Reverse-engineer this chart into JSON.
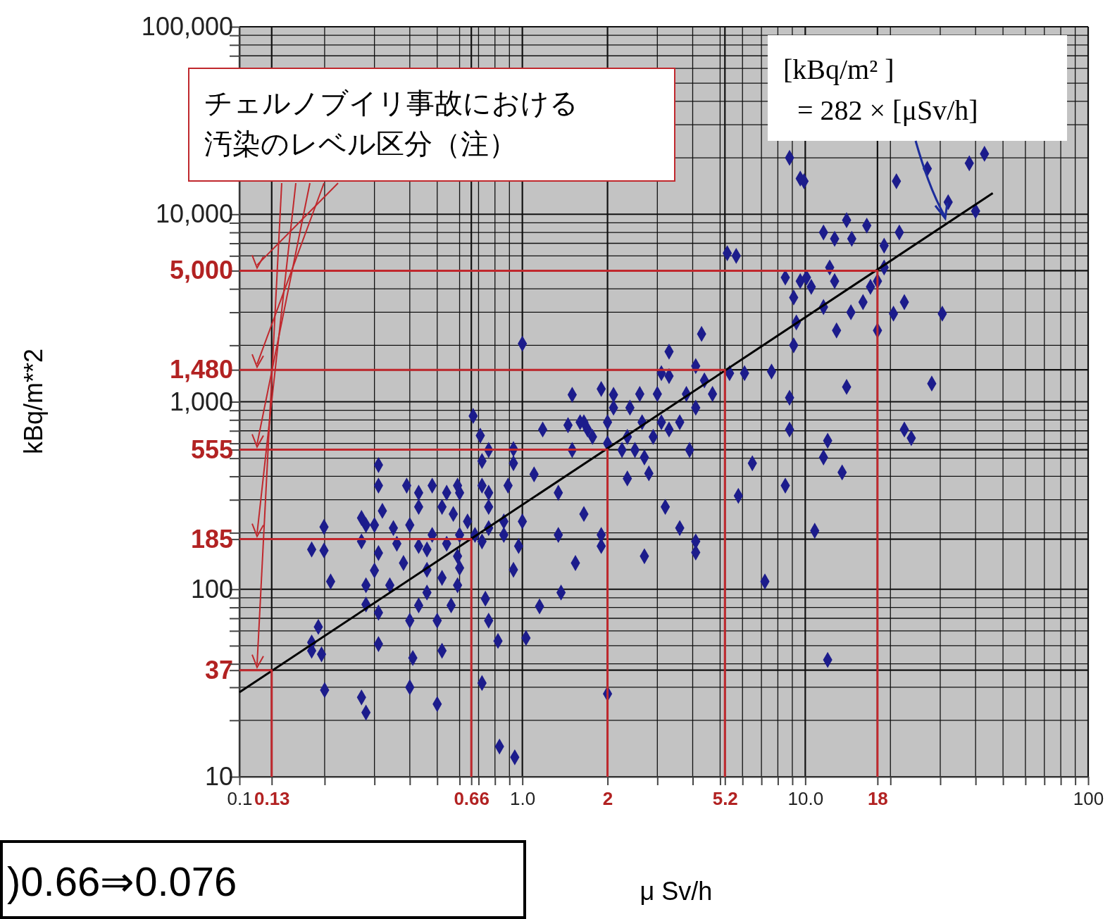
{
  "chart_data": {
    "type": "scatter",
    "log": "xy",
    "grid": true,
    "xlabel": "μ Sv/h",
    "ylabel": "kBq/m**2",
    "xlim": [
      0.1,
      100
    ],
    "ylim": [
      10,
      100000
    ],
    "xticks": [
      {
        "value": 0.1,
        "label": "0.1"
      },
      0.13,
      {
        "value": 0.2,
        "label": null
      },
      {
        "value": 0.3,
        "label": null
      },
      {
        "value": 0.4,
        "label": null
      },
      {
        "value": 0.5,
        "label": null
      },
      {
        "value": 0.6,
        "label": null
      },
      0.66,
      {
        "value": 0.7,
        "label": null
      },
      {
        "value": 0.8,
        "label": null
      },
      {
        "value": 0.9,
        "label": null
      },
      {
        "value": 1,
        "label": "1.0"
      },
      2,
      {
        "value": 3,
        "label": null
      },
      {
        "value": 4,
        "label": null
      },
      {
        "value": 5,
        "label": null
      },
      5.2,
      {
        "value": 6,
        "label": null
      },
      {
        "value": 7,
        "label": null
      },
      {
        "value": 8,
        "label": null
      },
      {
        "value": 9,
        "label": null
      },
      {
        "value": 10,
        "label": "10.0"
      },
      18,
      {
        "value": 20,
        "label": null
      },
      {
        "value": 30,
        "label": null
      },
      {
        "value": 40,
        "label": null
      },
      {
        "value": 50,
        "label": null
      },
      {
        "value": 60,
        "label": null
      },
      {
        "value": 70,
        "label": null
      },
      {
        "value": 80,
        "label": null
      },
      {
        "value": 90,
        "label": null
      },
      100
    ],
    "yticks": [
      10,
      {
        "value": 20,
        "label": null
      },
      {
        "value": 30,
        "label": null
      },
      37,
      {
        "value": 40,
        "label": null
      },
      {
        "value": 50,
        "label": null
      },
      {
        "value": 60,
        "label": null
      },
      {
        "value": 70,
        "label": null
      },
      {
        "value": 80,
        "label": null
      },
      {
        "value": 90,
        "label": null
      },
      100,
      185,
      {
        "value": 200,
        "label": null
      },
      {
        "value": 300,
        "label": null
      },
      {
        "value": 400,
        "label": null
      },
      {
        "value": 500,
        "label": null
      },
      555,
      {
        "value": 600,
        "label": null
      },
      {
        "value": 700,
        "label": null
      },
      {
        "value": 800,
        "label": null
      },
      {
        "value": 900,
        "label": null
      },
      {
        "value": 1000,
        "label": "1,000"
      },
      {
        "value": 1480,
        "label": "1,480"
      },
      {
        "value": 2000,
        "label": null
      },
      {
        "value": 3000,
        "label": null
      },
      {
        "value": 4000,
        "label": null
      },
      {
        "value": 5000,
        "label": "5,000"
      },
      {
        "value": 6000,
        "label": null
      },
      {
        "value": 7000,
        "label": null
      },
      {
        "value": 8000,
        "label": null
      },
      {
        "value": 9000,
        "label": null
      },
      {
        "value": 10000,
        "label": "10,000"
      },
      {
        "value": 20000,
        "label": null
      },
      {
        "value": 30000,
        "label": null
      },
      {
        "value": 40000,
        "label": null
      },
      {
        "value": 50000,
        "label": null
      },
      {
        "value": 60000,
        "label": null
      },
      {
        "value": 70000,
        "label": null
      },
      {
        "value": 80000,
        "label": null
      },
      {
        "value": 90000,
        "label": null
      },
      {
        "value": 100000,
        "label": "100,000"
      }
    ],
    "series": [
      {
        "marker": "diamond",
        "color": "#1c1c8c",
        "x": [
          0.199,
          0.199,
          0.18,
          0.18,
          0.18,
          0.195,
          0.19,
          0.2,
          0.21,
          0.27,
          0.28,
          0.27,
          0.31,
          0.31,
          0.3,
          0.31,
          0.3,
          0.28,
          0.28,
          0.27,
          0.28,
          0.31,
          0.31,
          0.32,
          0.35,
          0.36,
          0.39,
          0.4,
          0.43,
          0.43,
          0.43,
          0.41,
          0.4,
          0.5,
          0.46,
          0.5,
          0.52,
          0.48,
          0.54,
          0.59,
          0.57,
          0.59,
          0.6,
          0.56,
          0.59,
          0.67,
          0.71,
          0.72,
          0.76,
          0.76,
          0.72,
          0.74,
          0.76,
          0.72,
          0.83,
          0.94,
          0.82,
          0.97,
          1.0,
          0.89,
          0.93,
          1.0,
          1.03,
          0.93,
          1.15,
          1.18,
          1.34,
          1.34,
          1.37,
          1.5,
          1.54,
          1.65,
          1.7,
          1.9,
          1.9,
          2.0,
          2.0,
          2.1,
          2.25,
          2.35,
          2.4,
          2.6,
          2.7,
          2.8,
          3.1,
          3.2,
          3.1,
          3.3,
          3.6,
          3.9,
          4.1,
          4.1,
          4.3,
          4.1,
          4.4,
          4.7,
          5.3,
          5.7,
          5.4,
          5.8,
          6.1,
          6.5,
          7.2,
          7.6,
          8.5,
          8.8,
          8.8,
          9.1,
          8.8,
          9.6,
          9.9,
          10.8,
          11.6,
          12,
          12,
          13.5,
          11.6,
          12.7,
          14,
          14.6,
          14,
          14.5,
          16.5,
          17,
          18,
          20.5,
          21,
          22.4,
          22.4,
          23.7,
          19,
          21.5,
          27,
          28,
          30.5,
          32,
          38,
          40,
          43,
          8.5,
          9.6,
          10.1,
          10.5,
          11.6,
          9.1,
          12.2,
          12.9,
          12.7,
          9.3,
          18,
          19,
          16,
          1.6,
          1.77,
          2.0,
          2.35,
          2.5,
          2.7,
          2.9,
          3.3,
          3.6,
          3.8,
          2.65,
          3.0,
          3.3,
          4.1,
          1.9,
          2.1,
          1.65,
          1.5,
          1.45,
          0.43,
          0.48,
          0.52,
          0.6,
          0.64,
          0.68,
          0.76,
          0.86,
          0.86,
          0.72,
          0.76,
          0.93,
          1.1,
          0.46,
          0.54,
          0.6,
          0.52,
          0.46,
          0.38,
          0.34,
          0.4
        ],
        "values": [
          215,
          161,
          163,
          52,
          47,
          45,
          63,
          29,
          110,
          240,
          220,
          180,
          460,
          357,
          220,
          156,
          126,
          105,
          83,
          26.5,
          22,
          51,
          75,
          262,
          212,
          175,
          357,
          220,
          275,
          170,
          82,
          43,
          30,
          24.4,
          96,
          68,
          47,
          195,
          327,
          357,
          252,
          150,
          130,
          82,
          105,
          840,
          660,
          483,
          327,
          275,
          180,
          89,
          68,
          31.6,
          14.5,
          12.7,
          53,
          170,
          230,
          357,
          560,
          2040,
          55,
          127,
          81,
          711,
          327,
          195,
          96,
          1090,
          138,
          252,
          711,
          170,
          195,
          27.7,
          778,
          1090,
          553,
          390,
          930,
          1100,
          150,
          415,
          778,
          275,
          1420,
          1850,
          212,
          553,
          180,
          157,
          2300,
          930,
          1300,
          1100,
          6200,
          6000,
          1420,
          315,
          1420,
          470,
          110,
          1450,
          357,
          711,
          1050,
          2000,
          20000,
          15500,
          15000,
          205,
          505,
          42,
          620,
          420,
          8000,
          7400,
          9300,
          7400,
          1200,
          3000,
          8700,
          4100,
          2400,
          2950,
          15000,
          3400,
          711,
          640,
          6800,
          8000,
          17500,
          1250,
          2950,
          11600,
          18700,
          10400,
          21000,
          4600,
          4400,
          4600,
          4100,
          3200,
          3600,
          5200,
          2400,
          4400,
          2650,
          4400,
          5200,
          3400,
          778,
          650,
          600,
          650,
          553,
          505,
          650,
          711,
          778,
          1100,
          778,
          1100,
          1370,
          1550,
          1170,
          930,
          778,
          553,
          750,
          327,
          357,
          275,
          327,
          230,
          195,
          212,
          195,
          230,
          357,
          553,
          470,
          410,
          163,
          175,
          195,
          115,
          127,
          138,
          105,
          68
        ]
      },
      {
        "type": "line",
        "marker": "none",
        "color": "#000000",
        "x": [
          0.1,
          46
        ],
        "values": [
          28.2,
          12970
        ]
      },
      {
        "type": "line",
        "marker": "none",
        "color": "#c0282d",
        "x": [
          0.1,
          0.13,
          0.13
        ],
        "values": [
          37,
          37,
          10
        ]
      },
      {
        "type": "line",
        "marker": "none",
        "color": "#c0282d",
        "x": [
          0.1,
          0.66,
          0.66
        ],
        "values": [
          185,
          185,
          10
        ]
      },
      {
        "type": "line",
        "marker": "none",
        "color": "#c0282d",
        "x": [
          0.1,
          2,
          2
        ],
        "values": [
          555,
          555,
          10
        ]
      },
      {
        "type": "line",
        "marker": "none",
        "color": "#c0282d",
        "x": [
          0.1,
          5.2,
          5.2
        ],
        "values": [
          1480,
          1480,
          10
        ]
      },
      {
        "type": "line",
        "marker": "none",
        "color": "#c0282d",
        "x": [
          0.1,
          18,
          18
        ],
        "values": [
          5000,
          5000,
          10
        ]
      }
    ],
    "annotations": [
      "チェルノブイリ事故における",
      "汚染のレベル区分（注）",
      "[kBq/m² ]\n= 282 × [μSv/h]",
      ")0.66⇒0.076"
    ]
  }
}
